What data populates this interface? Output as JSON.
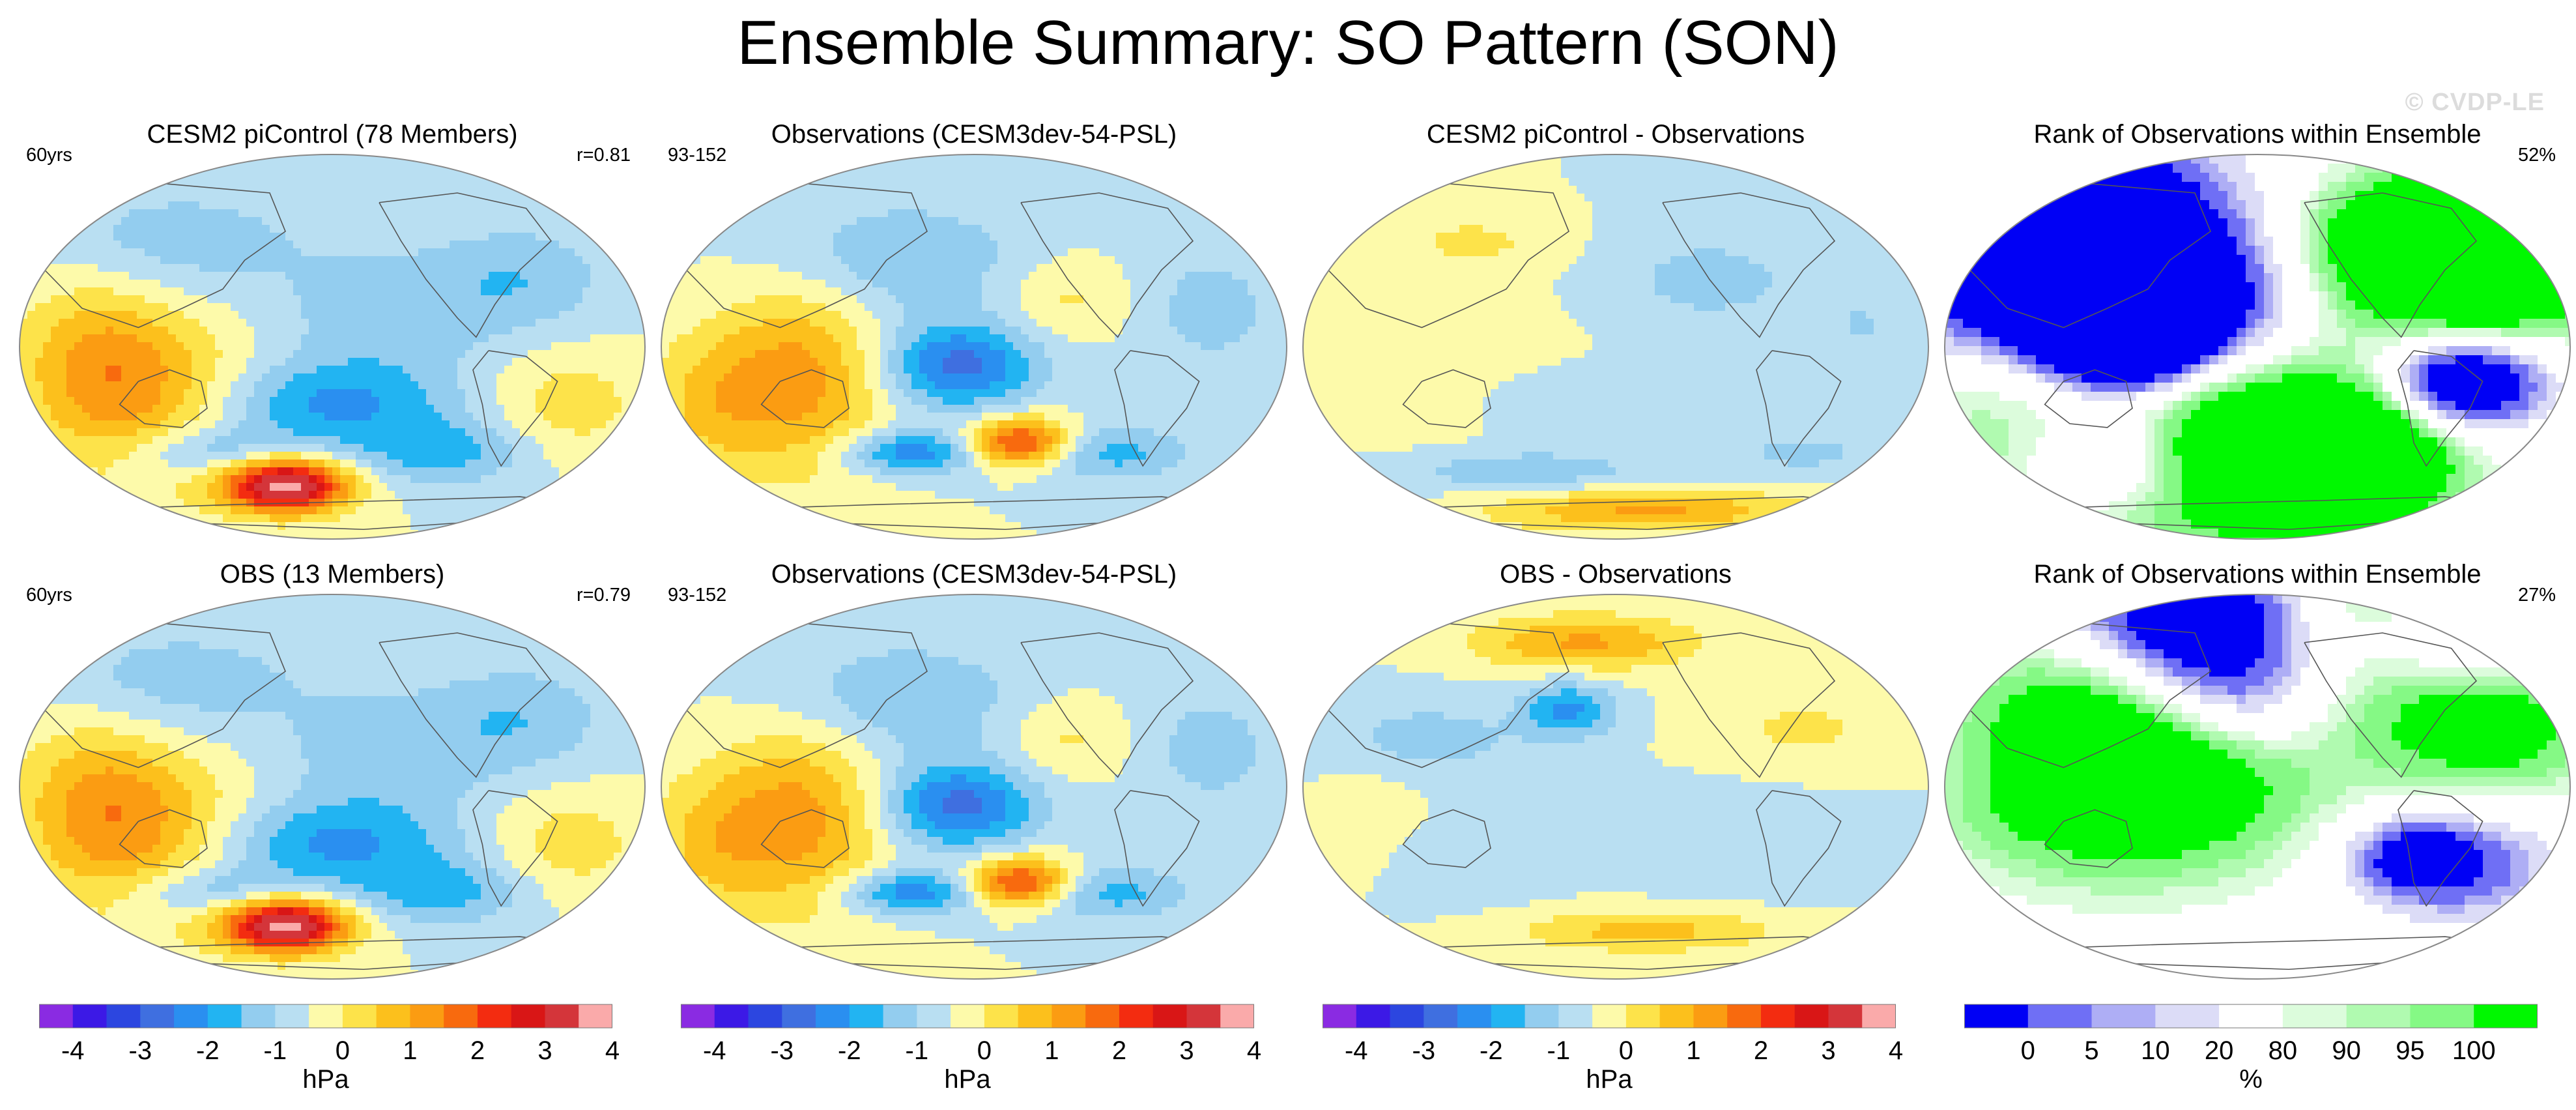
{
  "title": "Ensemble Summary: SO Pattern (SON)",
  "watermark": "© CVDP-LE",
  "panels": [
    {
      "title": "CESM2 piControl (78 Members)",
      "left_label": "60yrs",
      "right_label": "r=0.81",
      "kind": "diverging",
      "pattern": "ens"
    },
    {
      "title": "Observations (CESM3dev-54-PSL)",
      "left_label": "93-152",
      "right_label": "",
      "kind": "diverging",
      "pattern": "obs"
    },
    {
      "title": "CESM2 piControl - Observations",
      "left_label": "",
      "right_label": "",
      "kind": "diverging",
      "pattern": "diff1"
    },
    {
      "title": "Rank of Observations within Ensemble",
      "left_label": "",
      "right_label": "52%",
      "kind": "rank",
      "pattern": "rank1"
    },
    {
      "title": "OBS (13 Members)",
      "left_label": "60yrs",
      "right_label": "r=0.79",
      "kind": "diverging",
      "pattern": "ens"
    },
    {
      "title": "Observations (CESM3dev-54-PSL)",
      "left_label": "93-152",
      "right_label": "",
      "kind": "diverging",
      "pattern": "obs"
    },
    {
      "title": "OBS - Observations",
      "left_label": "",
      "right_label": "",
      "kind": "diverging",
      "pattern": "diff2"
    },
    {
      "title": "Rank of Observations within Ensemble",
      "left_label": "",
      "right_label": "27%",
      "kind": "rank",
      "pattern": "rank2"
    }
  ],
  "colorbars": [
    {
      "kind": "diverging",
      "unit": "hPa",
      "ticks": [
        "-4",
        "-3",
        "-2",
        "-1",
        "0",
        "1",
        "2",
        "3",
        "4"
      ]
    },
    {
      "kind": "diverging",
      "unit": "hPa",
      "ticks": [
        "-4",
        "-3",
        "-2",
        "-1",
        "0",
        "1",
        "2",
        "3",
        "4"
      ]
    },
    {
      "kind": "diverging",
      "unit": "hPa",
      "ticks": [
        "-4",
        "-3",
        "-2",
        "-1",
        "0",
        "1",
        "2",
        "3",
        "4"
      ]
    },
    {
      "kind": "rank",
      "unit": "%",
      "ticks": [
        "0",
        "5",
        "10",
        "20",
        "80",
        "90",
        "95",
        "100"
      ]
    }
  ],
  "colors": {
    "diverging": [
      "#8a2be2",
      "#3c19e6",
      "#2c46e0",
      "#3f6fe0",
      "#2a8ff0",
      "#22b4f2",
      "#93cdef",
      "#b9dff2",
      "#fdfaaa",
      "#fde34a",
      "#fcc01c",
      "#fb9c12",
      "#f86a0e",
      "#f32c10",
      "#d91616",
      "#d4353a",
      "#faaaaa"
    ],
    "rank": [
      "#0000f5",
      "#6f6ff5",
      "#aeaef5",
      "#dcdcf7",
      "#ffffff",
      "#dcfcdc",
      "#b0fab0",
      "#85f985",
      "#00f800"
    ]
  },
  "chart_data": [
    {
      "type": "heatmap",
      "title": "CESM2 piControl (78 Members)",
      "units": "hPa",
      "contour_levels": [
        -4,
        -3.5,
        -3,
        -2.5,
        -2,
        -1.5,
        -1,
        -0.5,
        0,
        0.5,
        1,
        1.5,
        2,
        2.5,
        3,
        3.5,
        4
      ],
      "features": [
        {
          "region": "South Pacific (Amundsen Sea)",
          "sign": "positive",
          "peak": 4.0
        },
        {
          "region": "Southern Ocean south of Australia",
          "sign": "negative",
          "peak": -1.5
        },
        {
          "region": "Subtropical South Pacific",
          "sign": "negative",
          "peak": -1.5
        },
        {
          "region": "Australia / Indian Ocean",
          "sign": "positive",
          "peak": 1.5
        },
        {
          "region": "Tropical Indo-Pacific",
          "sign": "positive",
          "peak": 1.0
        },
        {
          "region": "Eastern tropical Pacific",
          "sign": "negative",
          "peak": -1.0
        }
      ]
    },
    {
      "type": "heatmap",
      "title": "Observations (CESM3dev-54-PSL)",
      "units": "hPa",
      "features": [
        {
          "region": "South Pacific (Amundsen Sea)",
          "sign": "positive",
          "peak": 3.0
        },
        {
          "region": "Southern Ocean",
          "sign": "negative",
          "peak": -2.0
        },
        {
          "region": "Subtropical South Pacific",
          "sign": "negative",
          "peak": -2.5
        },
        {
          "region": "Australia / Indian Ocean",
          "sign": "positive",
          "peak": 1.5
        },
        {
          "region": "Eastern tropical Pacific",
          "sign": "negative",
          "peak": -1.0
        }
      ]
    },
    {
      "type": "heatmap",
      "title": "CESM2 piControl - Observations",
      "units": "hPa",
      "features": [
        {
          "region": "Antarctic coast / Southern Ocean",
          "sign": "positive",
          "peak": 1.5
        },
        {
          "region": "Southern midlatitudes",
          "sign": "negative",
          "peak": -1.0
        },
        {
          "region": "North Pacific",
          "sign": "negative",
          "peak": -0.5
        },
        {
          "region": "Tropics",
          "sign": "positive",
          "peak": 0.5
        }
      ]
    },
    {
      "type": "heatmap",
      "title": "Rank of Observations within Ensemble",
      "units": "%",
      "levels": [
        0,
        5,
        10,
        20,
        80,
        90,
        95,
        100
      ],
      "summary_value": "52%"
    },
    {
      "type": "heatmap",
      "title": "OBS (13 Members)",
      "units": "hPa",
      "features": [
        {
          "region": "South Pacific (Amundsen Sea)",
          "sign": "positive",
          "peak": 4.0
        },
        {
          "region": "Southern Ocean",
          "sign": "negative",
          "peak": -1.5
        },
        {
          "region": "Subtropical South Pacific",
          "sign": "negative",
          "peak": -1.5
        },
        {
          "region": "Australia / Indian Ocean",
          "sign": "positive",
          "peak": 1.5
        }
      ]
    },
    {
      "type": "heatmap",
      "title": "Observations (CESM3dev-54-PSL)",
      "units": "hPa",
      "features": [
        {
          "region": "South Pacific (Amundsen Sea)",
          "sign": "positive",
          "peak": 3.0
        },
        {
          "region": "Southern Ocean",
          "sign": "negative",
          "peak": -2.0
        },
        {
          "region": "Subtropical South Pacific",
          "sign": "negative",
          "peak": -2.5
        },
        {
          "region": "Australia / Indian Ocean",
          "sign": "positive",
          "peak": 1.5
        }
      ]
    },
    {
      "type": "heatmap",
      "title": "OBS - Observations",
      "units": "hPa",
      "features": [
        {
          "region": "Northern Eurasia / Arctic",
          "sign": "positive",
          "peak": 1.5
        },
        {
          "region": "North Pacific",
          "sign": "negative",
          "peak": -1.5
        },
        {
          "region": "South Atlantic / Southern Ocean",
          "sign": "positive",
          "peak": 1.0
        },
        {
          "region": "Tropical Indo-Pacific",
          "sign": "negative",
          "peak": -0.5
        }
      ]
    },
    {
      "type": "heatmap",
      "title": "Rank of Observations within Ensemble",
      "units": "%",
      "levels": [
        0,
        5,
        10,
        20,
        80,
        90,
        95,
        100
      ],
      "summary_value": "27%"
    }
  ]
}
